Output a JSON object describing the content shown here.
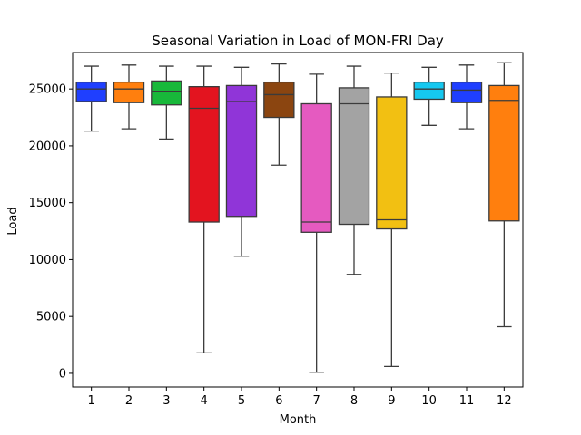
{
  "chart_data": {
    "type": "box",
    "title": "Seasonal Variation in Load of MON-FRI Day",
    "xlabel": "Month",
    "ylabel": "Load",
    "ylim": [
      -1200,
      28200
    ],
    "yticks": [
      0,
      5000,
      10000,
      15000,
      20000,
      25000
    ],
    "categories": [
      "1",
      "2",
      "3",
      "4",
      "5",
      "6",
      "7",
      "8",
      "9",
      "10",
      "11",
      "12"
    ],
    "colors": [
      "#1f3fff",
      "#ff7f0e",
      "#18b83a",
      "#e3141f",
      "#9035d8",
      "#8b4510",
      "#e55ac0",
      "#a3a3a3",
      "#f2c012",
      "#15c8f0",
      "#1f3fff",
      "#ff7f0e"
    ],
    "boxes": [
      {
        "month": "1",
        "whislo": 21300,
        "q1": 23900,
        "med": 25000,
        "q3": 25600,
        "whishi": 27000
      },
      {
        "month": "2",
        "whislo": 21500,
        "q1": 23800,
        "med": 25000,
        "q3": 25600,
        "whishi": 27100
      },
      {
        "month": "3",
        "whislo": 20600,
        "q1": 23600,
        "med": 24800,
        "q3": 25700,
        "whishi": 27000
      },
      {
        "month": "4",
        "whislo": 1800,
        "q1": 13300,
        "med": 23300,
        "q3": 25200,
        "whishi": 27000
      },
      {
        "month": "5",
        "whislo": 10300,
        "q1": 13800,
        "med": 23900,
        "q3": 25300,
        "whishi": 26900
      },
      {
        "month": "6",
        "whislo": 18300,
        "q1": 22500,
        "med": 24500,
        "q3": 25600,
        "whishi": 27200
      },
      {
        "month": "7",
        "whislo": 100,
        "q1": 12400,
        "med": 13300,
        "q3": 23700,
        "whishi": 26300
      },
      {
        "month": "8",
        "whislo": 8700,
        "q1": 13100,
        "med": 23700,
        "q3": 25100,
        "whishi": 27000
      },
      {
        "month": "9",
        "whislo": 600,
        "q1": 12700,
        "med": 13500,
        "q3": 24300,
        "whishi": 26400
      },
      {
        "month": "10",
        "whislo": 21800,
        "q1": 24100,
        "med": 25000,
        "q3": 25600,
        "whishi": 26900
      },
      {
        "month": "11",
        "whislo": 21500,
        "q1": 23800,
        "med": 24900,
        "q3": 25600,
        "whishi": 27100
      },
      {
        "month": "12",
        "whislo": 4100,
        "q1": 13400,
        "med": 24000,
        "q3": 25300,
        "whishi": 27300
      }
    ],
    "grid": false,
    "legend": "none"
  }
}
